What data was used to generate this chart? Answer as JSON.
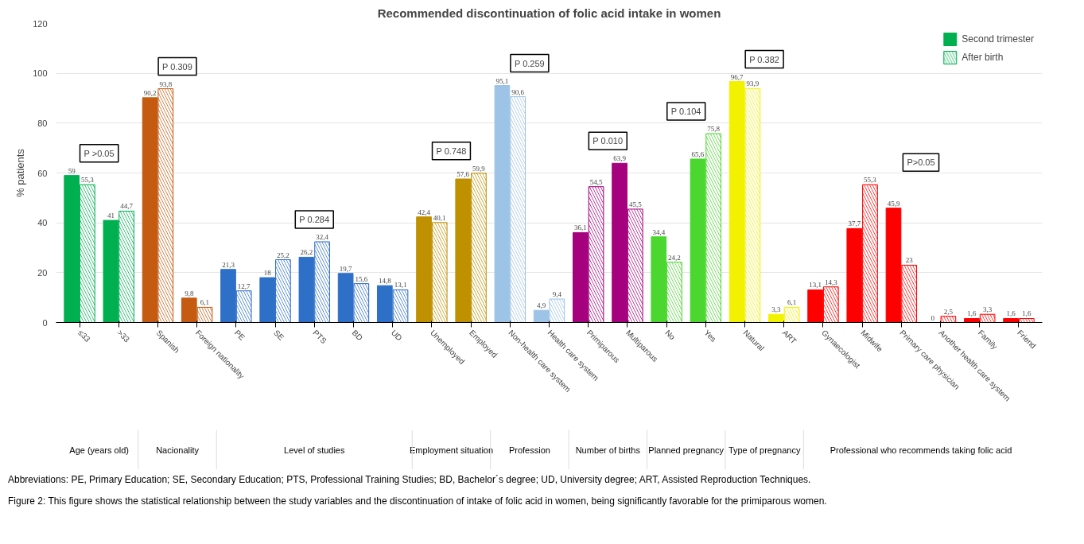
{
  "chart_data": {
    "type": "bar",
    "title": "Recommended discontinuation of folic acid intake in women",
    "ylabel": "% patients",
    "categories": [
      "≤33",
      ">33",
      "Spanish",
      "Foreign nationality",
      "PE",
      "SE",
      "PTS",
      "BD",
      "UD",
      "Unemployed",
      "Employed",
      "Non-health care system",
      "Health care system",
      "Primiparous",
      "Multiparous",
      "No",
      "Yes",
      "Natural",
      "ART",
      "Gynaecologist",
      "Midwife",
      "Primary care physician",
      "Another health care system",
      "Family",
      "Friend"
    ],
    "series": [
      {
        "name": "Second trimester",
        "colors": [
          "#00b050",
          "#00b050",
          "#c55a11",
          "#c55a11",
          "#2e6fc8",
          "#2e6fc8",
          "#2e6fc8",
          "#2e6fc8",
          "#2e6fc8",
          "#bf9000",
          "#bf9000",
          "#9dc3e6",
          "#9dc3e6",
          "#a5007d",
          "#a5007d",
          "#4cd630",
          "#4cd630",
          "#f2f200",
          "#f2f200",
          "#ff0000",
          "#ff0000",
          "#ff0000",
          "#ff0000",
          "#ff0000",
          "#ff0000"
        ],
        "values": [
          59,
          41,
          90.2,
          9.8,
          21.3,
          18,
          26.2,
          19.7,
          14.8,
          42.4,
          57.6,
          95.1,
          4.9,
          36.1,
          63.9,
          34.4,
          65.6,
          96.7,
          3.3,
          13.1,
          37.7,
          45.9,
          0,
          1.6,
          1.6
        ],
        "value_labels": [
          "59",
          "41",
          "90,2",
          "9,8",
          "21,3",
          "18",
          "26,2",
          "19,7",
          "14,8",
          "42,4",
          "57,6",
          "95,1",
          "4,9",
          "36,1",
          "63,9",
          "34,4",
          "65,6",
          "96,7",
          "3,3",
          "13,1",
          "37,7",
          "45,9",
          "0",
          "1,6",
          "1,6"
        ]
      },
      {
        "name": "After birth",
        "colors": [
          "#00b050",
          "#00b050",
          "#c55a11",
          "#c55a11",
          "#2e6fc8",
          "#2e6fc8",
          "#2e6fc8",
          "#2e6fc8",
          "#2e6fc8",
          "#bf9000",
          "#bf9000",
          "#9dc3e6",
          "#9dc3e6",
          "#a5007d",
          "#a5007d",
          "#4cd630",
          "#4cd630",
          "#f2f200",
          "#f2f200",
          "#ff0000",
          "#ff0000",
          "#ff0000",
          "#ff0000",
          "#ff0000",
          "#ff0000"
        ],
        "values": [
          55.3,
          44.7,
          93.8,
          6.1,
          12.7,
          25.2,
          32.4,
          15.6,
          13.1,
          40.1,
          59.9,
          90.6,
          9.4,
          54.5,
          45.5,
          24.2,
          75.8,
          93.9,
          6.1,
          14.3,
          55.3,
          23,
          2.5,
          3.3,
          1.6
        ],
        "value_labels": [
          "55,3",
          "44,7",
          "93,8",
          "6,1",
          "12,7",
          "25,2",
          "32,4",
          "15,6",
          "13,1",
          "40,1",
          "59,9",
          "90,6",
          "9,4",
          "54,5",
          "45,5",
          "24,2",
          "75,8",
          "93,9",
          "6,1",
          "14,3",
          "55,3",
          "23",
          "2,5",
          "3,3",
          "1,6"
        ]
      }
    ],
    "ylim": [
      0,
      120
    ],
    "yticks": [
      0,
      20,
      40,
      60,
      80,
      100,
      120
    ],
    "grid": "y",
    "legend": "top right",
    "annotations": [
      "P >0.05",
      "P 0.309",
      "P 0.284",
      "P 0.748",
      "P 0.259",
      "P 0.010",
      "P 0.104",
      "P 0.382",
      "P>0.05",
      "Age (years old)",
      "Nacionality",
      "Level of studies",
      "Employment situation",
      "Profession",
      "Number of births",
      "Planned pregnancy",
      "Type of pregnancy",
      "Professional who recommends taking folic acid",
      "Abbreviations: PE, Primary Education; SE, Secondary Education; PTS, Professional Training Studies; BD, Bachelor´s degree; UD, University degree; ART, Assisted Reproduction Techniques.",
      "Figure 2: This figure shows the statistical relationship between the study variables and the discontinuation of intake of folic acid in women, being significantly favorable for the primiparous women."
    ]
  }
}
